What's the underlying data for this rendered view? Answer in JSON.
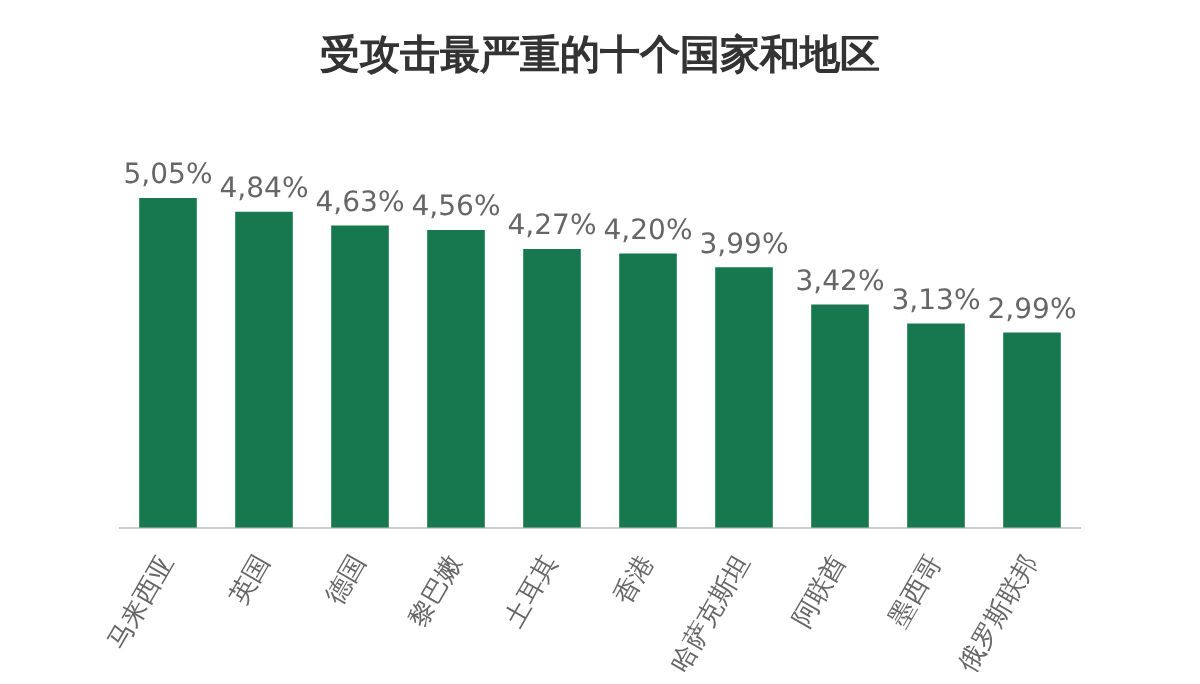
{
  "chart_data": {
    "type": "bar",
    "title": "受攻击最严重的十个国家和地区",
    "categories": [
      "马来西亚",
      "英国",
      "德国",
      "黎巴嫩",
      "土耳其",
      "香港",
      "哈萨克斯坦",
      "阿联酋",
      "墨西哥",
      "俄罗斯联邦"
    ],
    "values": [
      5.05,
      4.84,
      4.63,
      4.56,
      4.27,
      4.2,
      3.99,
      3.42,
      3.13,
      2.99
    ],
    "value_labels": [
      "5,05%",
      "4,84%",
      "4,63%",
      "4,56%",
      "4,27%",
      "4,20%",
      "3,99%",
      "3,42%",
      "3,13%",
      "2,99%"
    ],
    "color": "#17774f",
    "tick_labels": "x",
    "grid": false,
    "legend": false
  }
}
